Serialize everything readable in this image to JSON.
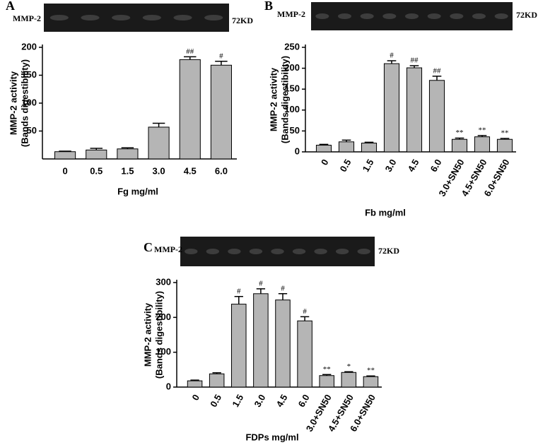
{
  "chart_data": [
    {
      "type": "bar",
      "panel": "A",
      "blot_label": "MMP-2",
      "blot_marker": "72KD",
      "y_label": [
        "MMP-2 activity",
        "(Bands digestibility)"
      ],
      "x_label": "Fg mg/ml",
      "categories": [
        "0",
        "0.5",
        "1.5",
        "3.0",
        "4.5",
        "6.0"
      ],
      "values": [
        13,
        16,
        18,
        57,
        178,
        168
      ],
      "errors": [
        1,
        3,
        2,
        7,
        5,
        7
      ],
      "annotations": [
        null,
        null,
        null,
        null,
        "##",
        "#"
      ],
      "color": "#b5b5b5",
      "ylim": [
        0,
        200
      ],
      "yticks": [
        50,
        100,
        150,
        200
      ]
    },
    {
      "type": "bar",
      "panel": "B",
      "blot_label": "MMP-2",
      "blot_marker": "72KD",
      "y_label": [
        "MMP-2 activity",
        "(Bands digestibility)"
      ],
      "x_label": "Fb mg/ml",
      "categories": [
        "0",
        "0.5",
        "1.5",
        "3.0",
        "4.5",
        "6.0",
        "3.0+SN50",
        "4.5+SN50",
        "6.0+SN50"
      ],
      "values": [
        16,
        24,
        21,
        211,
        201,
        171,
        30,
        36,
        30
      ],
      "errors": [
        2,
        4,
        2,
        7,
        5,
        10,
        3,
        3,
        2
      ],
      "annotations": [
        null,
        null,
        null,
        "#",
        "##",
        "##",
        "**",
        "**",
        "**"
      ],
      "color": "#b5b5b5",
      "ylim": [
        0,
        250
      ],
      "yticks": [
        0,
        50,
        100,
        150,
        200,
        250
      ]
    },
    {
      "type": "bar",
      "panel": "C",
      "blot_label": "MMP-2",
      "blot_marker": "72KD",
      "y_label": [
        "MMP-2 activity",
        "(Bands digestibility)"
      ],
      "x_label": "FDPs mg/ml",
      "categories": [
        "0",
        "0.5",
        "1.5",
        "3.0",
        "4.5",
        "6.0",
        "3.0+SN50",
        "4.5+SN50",
        "6.0+SN50"
      ],
      "values": [
        18,
        38,
        238,
        268,
        250,
        190,
        33,
        42,
        30
      ],
      "errors": [
        2,
        3,
        22,
        14,
        18,
        12,
        3,
        2,
        2
      ],
      "annotations": [
        null,
        null,
        "#",
        "#",
        "#",
        "#",
        "**",
        "*",
        "**"
      ],
      "color": "#b5b5b5",
      "ylim": [
        0,
        300
      ],
      "yticks": [
        0,
        100,
        200,
        300
      ]
    }
  ]
}
